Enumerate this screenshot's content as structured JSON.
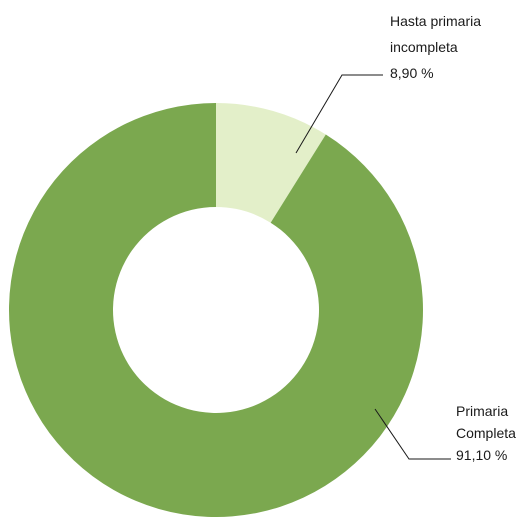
{
  "chart_data": {
    "type": "pie",
    "variant": "donut",
    "title": "",
    "slices": [
      {
        "label_lines": [
          "Hasta primaria",
          "incompleta"
        ],
        "value_text": "8,90 %",
        "value": 8.9,
        "color": "#e3efc9"
      },
      {
        "label_lines": [
          "Primaria",
          "Completa"
        ],
        "value_text": "91,10 %",
        "value": 91.1,
        "color": "#7ba84f"
      }
    ],
    "legend": "none",
    "labels_placement": "outside with leader lines"
  }
}
